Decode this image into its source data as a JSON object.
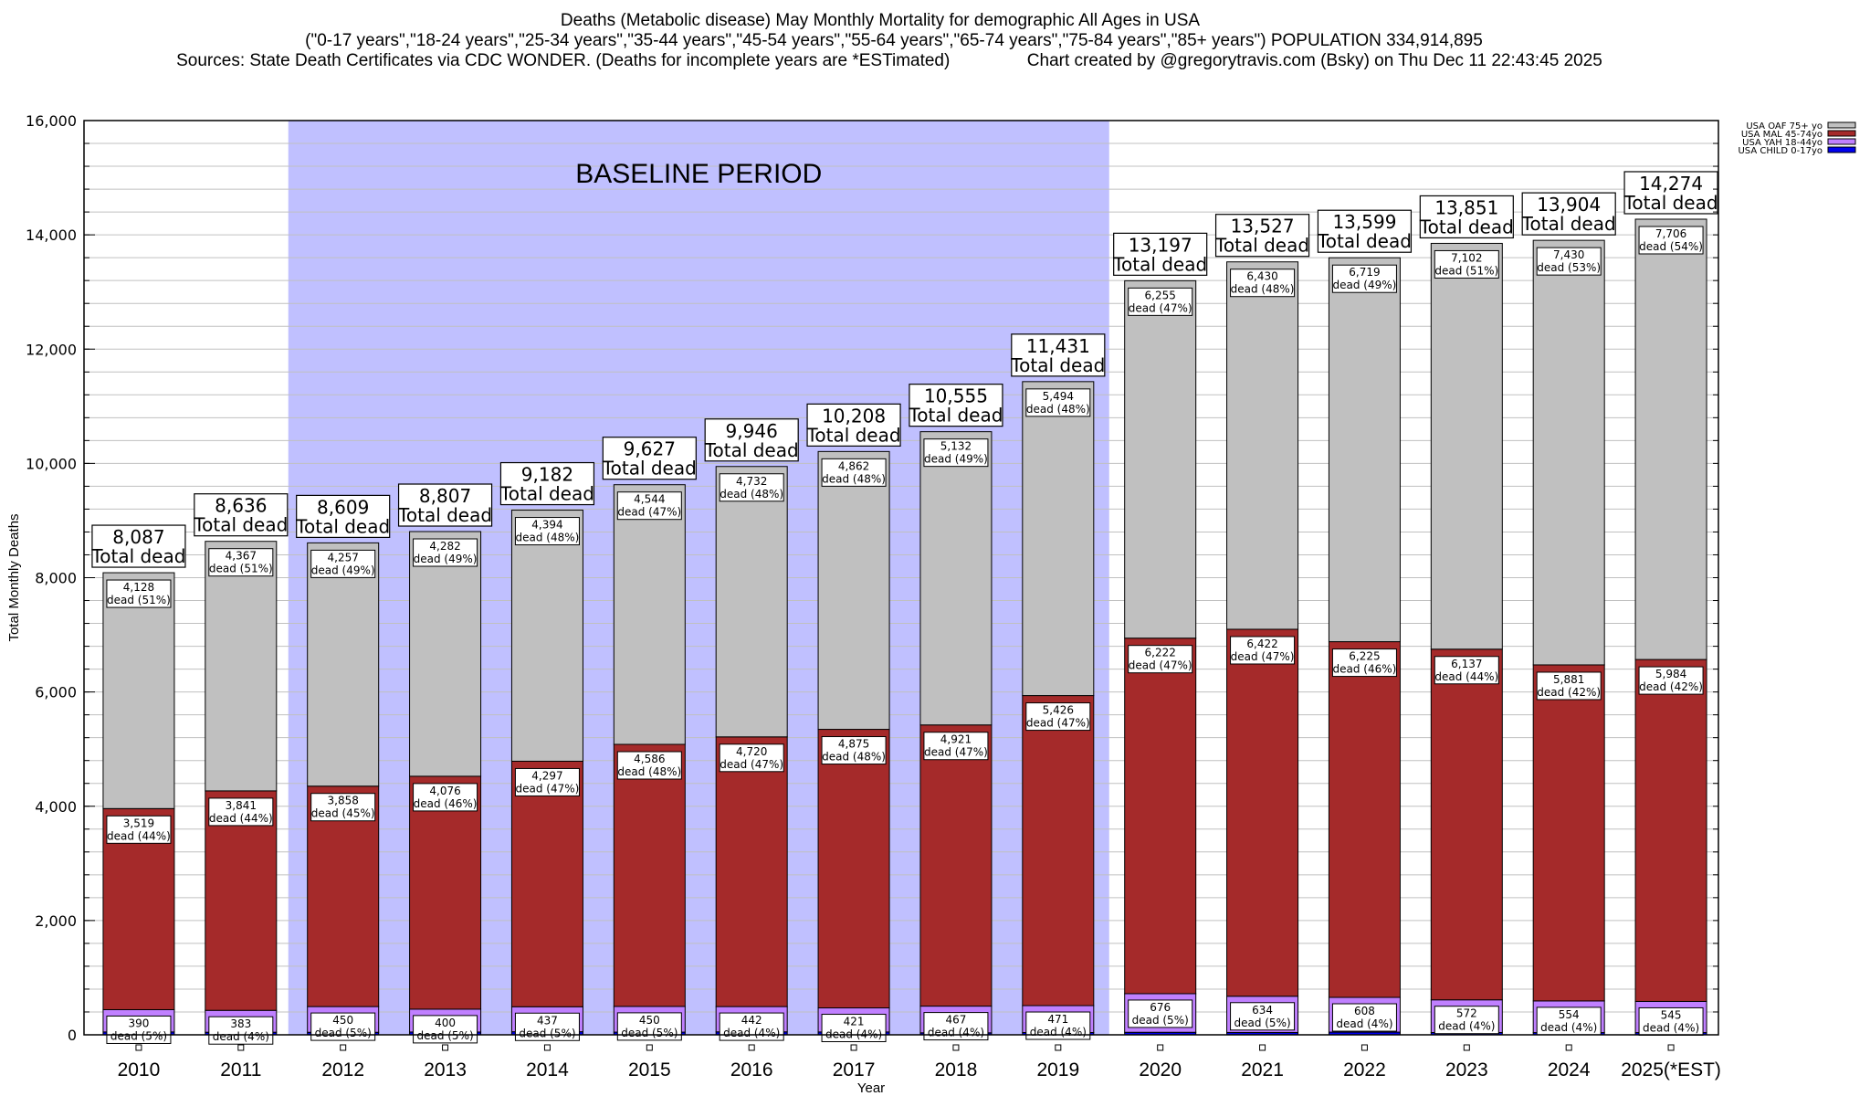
{
  "header": {
    "title_line1": "Deaths (Metabolic disease) May Monthly Mortality for demographic All Ages in USA",
    "title_line2": "(\"0-17 years\",\"18-24 years\",\"25-34 years\",\"35-44 years\",\"45-54 years\",\"55-64 years\",\"65-74 years\",\"75-84 years\",\"85+ years\") POPULATION 334,914,895",
    "title_line3": "Sources: State Death Certificates via CDC WONDER. (Deaths for incomplete years are *ESTimated)                Chart created by @gregorytravis.com (Bsky) on Thu Dec 11 22:43:45 2025"
  },
  "chart_data": {
    "type": "bar",
    "stacked": true,
    "title": "Deaths (Metabolic disease) May Monthly Mortality for demographic All Ages in USA",
    "xlabel": "Year",
    "ylabel": "Total Monthly Deaths",
    "ylim": [
      0,
      16000
    ],
    "yticks": [
      0,
      2000,
      4000,
      6000,
      8000,
      10000,
      12000,
      14000,
      16000
    ],
    "ytick_labels": [
      "0",
      "2,000",
      "4,000",
      "6,000",
      "8,000",
      "10,000",
      "12,000",
      "14,000",
      "16,000"
    ],
    "minor_grid_step": 400,
    "grid": true,
    "legend_position": "top-right",
    "categories": [
      "2010",
      "2011",
      "2012",
      "2013",
      "2014",
      "2015",
      "2016",
      "2017",
      "2018",
      "2019",
      "2020",
      "2021",
      "2022",
      "2023",
      "2024",
      "2025(*EST)"
    ],
    "totals": [
      8087,
      8636,
      8609,
      8807,
      9182,
      9627,
      9946,
      10208,
      10555,
      11431,
      13197,
      13527,
      13599,
      13851,
      13904,
      14274
    ],
    "total_labels": [
      "8,087",
      "8,636",
      "8,609",
      "8,807",
      "9,182",
      "9,627",
      "9,946",
      "10,208",
      "10,555",
      "11,431",
      "13,197",
      "13,527",
      "13,599",
      "13,851",
      "13,904",
      "14,274"
    ],
    "total_suffix": "Total dead",
    "series": [
      {
        "name": "USA CHILD 0-17yo",
        "color": "#0000ee",
        "values": [
          50,
          45,
          44,
          49,
          54,
          47,
          52,
          50,
          35,
          40,
          44,
          41,
          47,
          40,
          39,
          39
        ],
        "labels": []
      },
      {
        "name": "USA YAH 18-44yo",
        "color": "#c080ff",
        "values": [
          390,
          383,
          450,
          400,
          437,
          450,
          442,
          421,
          467,
          471,
          676,
          634,
          608,
          572,
          554,
          545
        ],
        "labels": [
          "390",
          "383",
          "450",
          "400",
          "437",
          "450",
          "442",
          "421",
          "467",
          "471",
          "676",
          "634",
          "608",
          "572",
          "554",
          "545"
        ],
        "pcts": [
          "5%",
          "4%",
          "5%",
          "5%",
          "5%",
          "5%",
          "4%",
          "4%",
          "4%",
          "4%",
          "5%",
          "5%",
          "4%",
          "4%",
          "4%",
          "4%"
        ]
      },
      {
        "name": "USA MAL 45-74yo",
        "color": "#a52a2a",
        "values": [
          3519,
          3841,
          3858,
          4076,
          4297,
          4586,
          4720,
          4875,
          4921,
          5426,
          6222,
          6422,
          6225,
          6137,
          5881,
          5984
        ],
        "labels": [
          "3,519",
          "3,841",
          "3,858",
          "4,076",
          "4,297",
          "4,586",
          "4,720",
          "4,875",
          "4,921",
          "5,426",
          "6,222",
          "6,422",
          "6,225",
          "6,137",
          "5,881",
          "5,984"
        ],
        "pcts": [
          "44%",
          "44%",
          "45%",
          "46%",
          "47%",
          "48%",
          "47%",
          "48%",
          "47%",
          "47%",
          "47%",
          "47%",
          "46%",
          "44%",
          "42%",
          "42%"
        ]
      },
      {
        "name": "USA OAF 75+ yo",
        "color": "#c0c0c0",
        "values": [
          4128,
          4367,
          4257,
          4282,
          4394,
          4544,
          4732,
          4862,
          5132,
          5494,
          6255,
          6430,
          6719,
          7102,
          7430,
          7706
        ],
        "labels": [
          "4,128",
          "4,367",
          "4,257",
          "4,282",
          "4,394",
          "4,544",
          "4,732",
          "4,862",
          "5,132",
          "5,494",
          "6,255",
          "6,430",
          "6,719",
          "7,102",
          "7,430",
          "7,706"
        ],
        "pcts": [
          "51%",
          "51%",
          "49%",
          "49%",
          "48%",
          "47%",
          "48%",
          "48%",
          "49%",
          "48%",
          "47%",
          "48%",
          "49%",
          "51%",
          "53%",
          "54%"
        ]
      }
    ],
    "segment_label_word": "dead",
    "legend_order": [
      "USA OAF 75+ yo",
      "USA MAL 45-74yo",
      "USA YAH 18-44yo",
      "USA CHILD 0-17yo"
    ],
    "annotations": [
      {
        "text": "BASELINE PERIOD",
        "span_from": "2012",
        "span_to": "2019",
        "shade_color": "#c0c0ff"
      }
    ]
  }
}
